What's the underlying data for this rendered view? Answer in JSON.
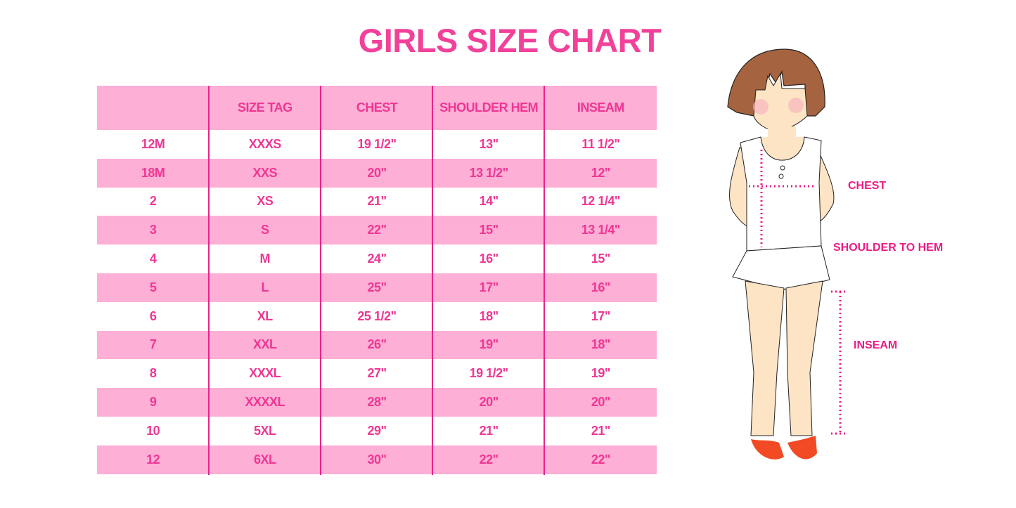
{
  "title": "GIRLS SIZE CHART",
  "table": {
    "headers": [
      "",
      "SIZE TAG",
      "CHEST",
      "SHOULDER HEM",
      "INSEAM"
    ],
    "rows": [
      [
        "12M",
        "XXXS",
        "19 1/2\"",
        "13\"",
        "11 1/2\""
      ],
      [
        "18M",
        "XXS",
        "20\"",
        "13 1/2\"",
        "12\""
      ],
      [
        "2",
        "XS",
        "21\"",
        "14\"",
        "12 1/4\""
      ],
      [
        "3",
        "S",
        "22\"",
        "15\"",
        "13 1/4\""
      ],
      [
        "4",
        "M",
        "24\"",
        "16\"",
        "15\""
      ],
      [
        "5",
        "L",
        "25\"",
        "17\"",
        "16\""
      ],
      [
        "6",
        "XL",
        "25 1/2\"",
        "18\"",
        "17\""
      ],
      [
        "7",
        "XXL",
        "26\"",
        "19\"",
        "18\""
      ],
      [
        "8",
        "XXXL",
        "27\"",
        "19 1/2\"",
        "19\""
      ],
      [
        "9",
        "XXXXL",
        "28\"",
        "20\"",
        "20\""
      ],
      [
        "10",
        "5XL",
        "29\"",
        "21\"",
        "21\""
      ],
      [
        "12",
        "6XL",
        "30\"",
        "22\"",
        "22\""
      ]
    ]
  },
  "figure": {
    "labels": {
      "chest": "CHEST",
      "shoulder_to_hem": "SHOULDER TO HEM",
      "inseam": "INSEAM"
    }
  },
  "colors": {
    "accent": "#ee3794",
    "row_pink": "#fdafd6",
    "divider": "#e6248b"
  }
}
